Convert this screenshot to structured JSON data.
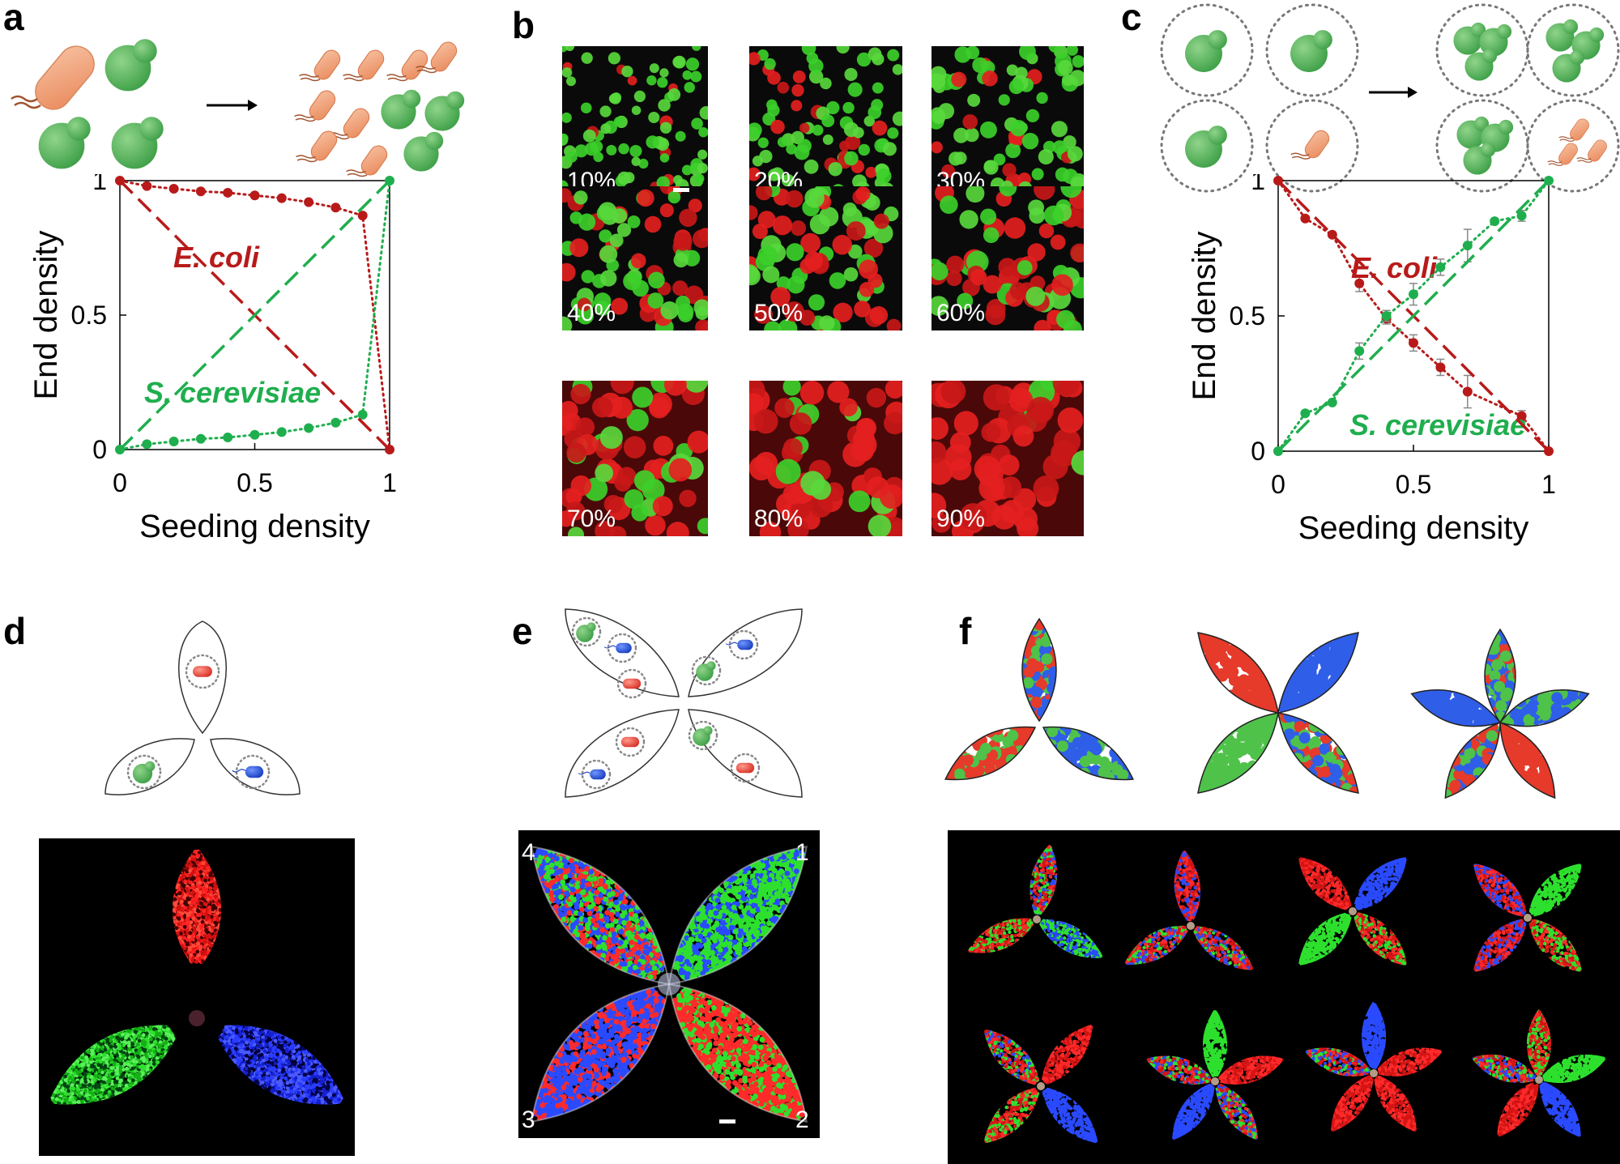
{
  "panel_letters": [
    "a",
    "b",
    "c",
    "d",
    "e",
    "f"
  ],
  "colors": {
    "ecoli": "#b81a1a",
    "yeast": "#1fae4e",
    "bacteria_cell": "#f0a37a",
    "yeast_cell": "#5cb85c",
    "blue_cell": "#2e5bd8"
  },
  "icons": [
    "rod-bacterium-icon",
    "budding-yeast-icon",
    "arrow-right-icon",
    "blue-bacterium-icon",
    "droplet-icon"
  ],
  "micrographs": {
    "labels": [
      "10%",
      "20%",
      "30%",
      "40%",
      "50%",
      "60%",
      "70%",
      "80%",
      "90%"
    ],
    "red_fractions": [
      0.1,
      0.2,
      0.3,
      0.4,
      0.5,
      0.6,
      0.7,
      0.8,
      0.9
    ]
  },
  "e_numbers": [
    "4",
    "1",
    "3",
    "2"
  ],
  "chart_data": [
    {
      "panel": "a",
      "type": "line",
      "xlabel": "Seeding density",
      "ylabel": "End density",
      "xlim": [
        0,
        1
      ],
      "ylim": [
        0,
        1
      ],
      "xticks": [
        "0",
        "0.5",
        "1"
      ],
      "yticks": [
        "0",
        "0.5",
        "1"
      ],
      "grid": false,
      "series": [
        {
          "name": "E. coli",
          "color": "#b81a1a",
          "style": "dotted-markers",
          "x": [
            0,
            0.1,
            0.2,
            0.3,
            0.4,
            0.5,
            0.6,
            0.7,
            0.8,
            0.9,
            1
          ],
          "y": [
            1,
            0.98,
            0.97,
            0.96,
            0.955,
            0.945,
            0.935,
            0.92,
            0.9,
            0.87,
            0
          ]
        },
        {
          "name": "S. cerevisiae",
          "color": "#1fae4e",
          "style": "dotted-markers",
          "x": [
            0,
            0.1,
            0.2,
            0.3,
            0.4,
            0.5,
            0.6,
            0.7,
            0.8,
            0.9,
            1
          ],
          "y": [
            0,
            0.02,
            0.03,
            0.04,
            0.045,
            0.055,
            0.065,
            0.08,
            0.1,
            0.13,
            1
          ]
        },
        {
          "color": "#b81a1a",
          "style": "dashed",
          "x": [
            0,
            1
          ],
          "y": [
            1,
            0
          ]
        },
        {
          "color": "#1fae4e",
          "style": "dashed",
          "x": [
            0,
            1
          ],
          "y": [
            0,
            1
          ]
        }
      ]
    },
    {
      "panel": "c",
      "type": "line",
      "xlabel": "Seeding density",
      "ylabel": "End density",
      "xlim": [
        0,
        1
      ],
      "ylim": [
        0,
        1
      ],
      "xticks": [
        "0",
        "0.5",
        "1"
      ],
      "yticks": [
        "0",
        "0.5",
        "1"
      ],
      "grid": false,
      "series": [
        {
          "name": "E. coli",
          "color": "#b81a1a",
          "style": "dotted-markers",
          "x": [
            0,
            0.1,
            0.2,
            0.3,
            0.4,
            0.5,
            0.6,
            0.7,
            0.9,
            1
          ],
          "y": [
            1,
            0.86,
            0.8,
            0.62,
            0.49,
            0.4,
            0.31,
            0.22,
            0.13,
            0
          ],
          "err": [
            0,
            0.01,
            0.01,
            0.03,
            0.02,
            0.03,
            0.03,
            0.06,
            0.02,
            0
          ]
        },
        {
          "name": "S. cerevisiae",
          "color": "#1fae4e",
          "style": "dotted-markers",
          "x": [
            0,
            0.1,
            0.2,
            0.3,
            0.4,
            0.5,
            0.6,
            0.7,
            0.8,
            0.9,
            1
          ],
          "y": [
            0,
            0.14,
            0.18,
            0.37,
            0.5,
            0.58,
            0.68,
            0.76,
            0.85,
            0.87,
            1
          ],
          "err": [
            0,
            0.01,
            0.01,
            0.03,
            0.02,
            0.04,
            0.03,
            0.06,
            0.01,
            0.02,
            0
          ]
        },
        {
          "color": "#b81a1a",
          "style": "dashed",
          "x": [
            0,
            1
          ],
          "y": [
            1,
            0
          ]
        },
        {
          "color": "#1fae4e",
          "style": "dashed",
          "x": [
            0,
            1
          ],
          "y": [
            0,
            1
          ]
        }
      ]
    }
  ]
}
